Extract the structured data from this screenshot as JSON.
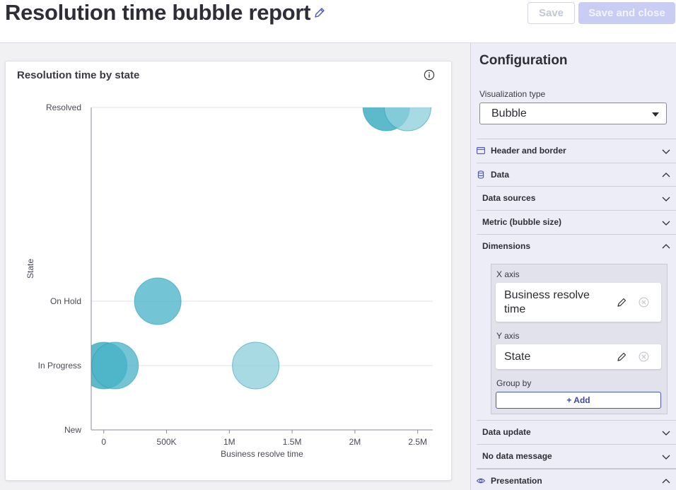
{
  "header": {
    "title": "Resolution time bubble report",
    "save_label": "Save",
    "save_close_label": "Save and close"
  },
  "card": {
    "title": "Resolution time by state"
  },
  "chart_data": {
    "type": "scatter",
    "title": "Resolution time by state",
    "xlabel": "Business resolve time",
    "ylabel": "State",
    "x_ticks": [
      "0",
      "500K",
      "1M",
      "1.5M",
      "2M",
      "2.5M"
    ],
    "x_tick_values": [
      0,
      500000,
      1000000,
      1500000,
      2000000,
      2500000
    ],
    "xlim": [
      -100000,
      2620000
    ],
    "y_categories": [
      "New",
      "In Progress",
      "On Hold",
      "Resolved"
    ],
    "grid": "horizontal",
    "points": [
      {
        "x": 2250000,
        "y": "Resolved",
        "shade": "dark"
      },
      {
        "x": 2420000,
        "y": "Resolved",
        "shade": "light"
      },
      {
        "x": 430000,
        "y": "On Hold",
        "shade": "mid"
      },
      {
        "x": 0,
        "y": "In Progress",
        "shade": "dark"
      },
      {
        "x": 90000,
        "y": "In Progress",
        "shade": "mid"
      },
      {
        "x": 1210000,
        "y": "In Progress",
        "shade": "light"
      }
    ],
    "colors": {
      "dark": "#2fa6bd",
      "mid": "#4cb3c8",
      "light": "#90cfdc"
    }
  },
  "panel": {
    "title": "Configuration",
    "viz_type_label": "Visualization type",
    "viz_type_value": "Bubble",
    "sections": {
      "header_border": "Header and border",
      "data": "Data",
      "data_sources": "Data sources",
      "metric": "Metric (bubble size)",
      "dimensions": "Dimensions",
      "data_update": "Data update",
      "no_data": "No data message",
      "presentation": "Presentation"
    },
    "dims": {
      "x_axis_label": "X axis",
      "x_axis_value": "Business resolve time",
      "y_axis_label": "Y axis",
      "y_axis_value": "State",
      "group_by_label": "Group by",
      "add_label": "+ Add"
    }
  }
}
